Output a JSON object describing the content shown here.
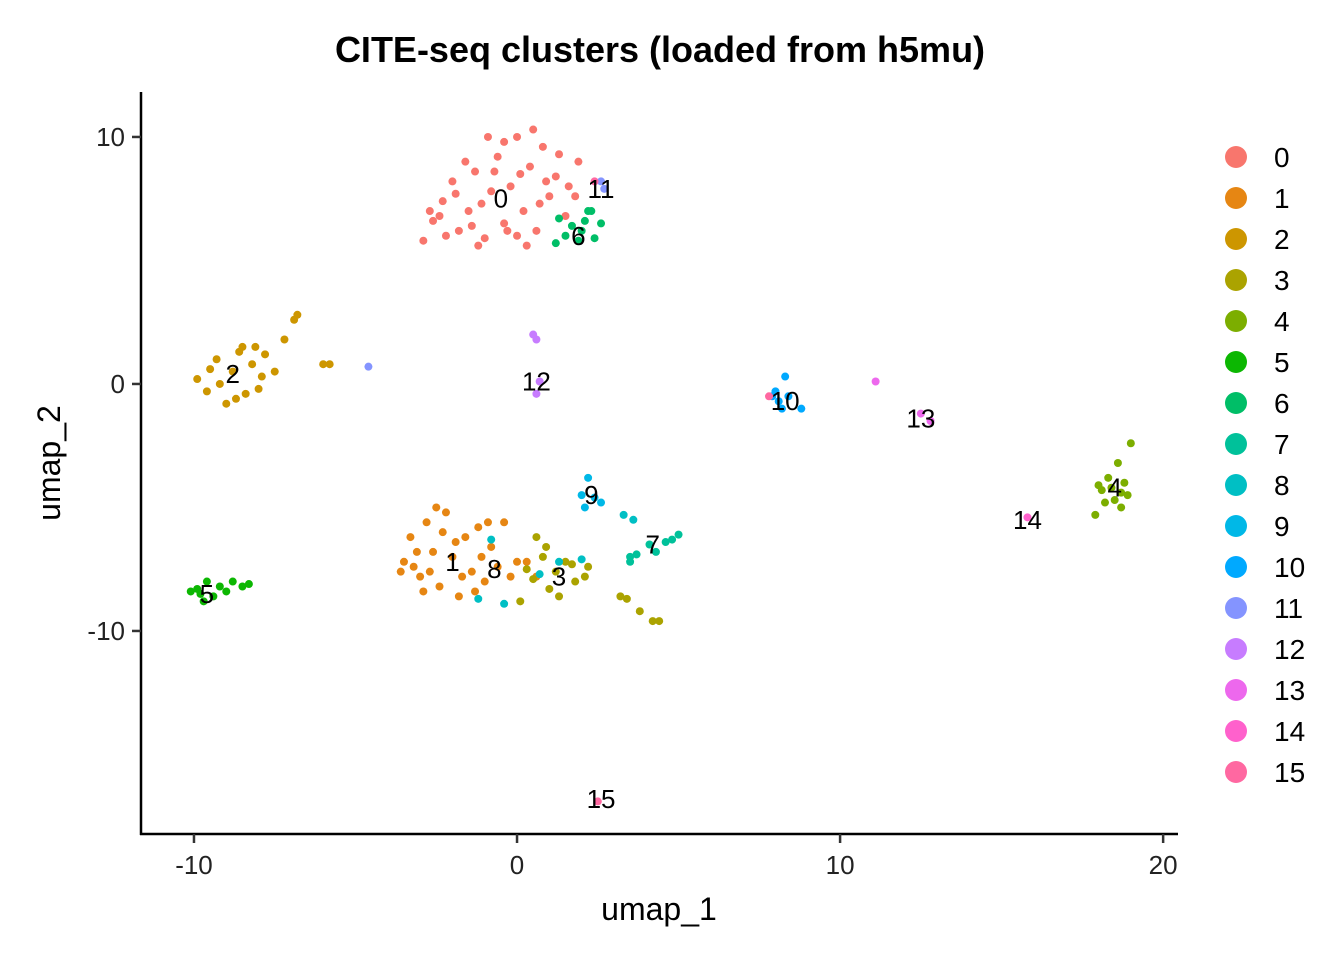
{
  "chart_data": {
    "type": "scatter",
    "title": "CITE-seq clusters (loaded from h5mu)",
    "xlabel": "umap_1",
    "ylabel": "umap_2",
    "xlim": [
      -11.64,
      20.46
    ],
    "ylim": [
      -18.22,
      11.82
    ],
    "xticks": [
      -10,
      0,
      10,
      20
    ],
    "yticks": [
      -10,
      0,
      10
    ],
    "grid": false,
    "legend_position": "right",
    "legend": [
      "0",
      "1",
      "2",
      "3",
      "4",
      "5",
      "6",
      "7",
      "8",
      "9",
      "10",
      "11",
      "12",
      "13",
      "14",
      "15"
    ],
    "colors": [
      "#F8766D",
      "#E68613",
      "#CD9600",
      "#ABA300",
      "#7CAE00",
      "#0CB702",
      "#00BE67",
      "#00C19A",
      "#00BFC4",
      "#00B8E7",
      "#00A9FF",
      "#8494FF",
      "#C77CFF",
      "#ED68ED",
      "#FF61CC",
      "#FF68A1"
    ],
    "series": [
      {
        "name": "0",
        "points": [
          [
            -2.9,
            5.8
          ],
          [
            -2.6,
            6.6
          ],
          [
            -2.3,
            7.4
          ],
          [
            -2.0,
            8.2
          ],
          [
            -1.8,
            6.2
          ],
          [
            -1.5,
            7.0
          ],
          [
            -1.3,
            8.6
          ],
          [
            -1.0,
            5.9
          ],
          [
            -0.8,
            7.8
          ],
          [
            -0.6,
            9.2
          ],
          [
            -0.4,
            6.5
          ],
          [
            -0.2,
            8.0
          ],
          [
            0,
            10.0
          ],
          [
            0.2,
            7.0
          ],
          [
            0.4,
            8.8
          ],
          [
            0.6,
            6.2
          ],
          [
            0.8,
            9.6
          ],
          [
            1.0,
            7.6
          ],
          [
            1.2,
            8.4
          ],
          [
            1.5,
            6.8
          ],
          [
            1.8,
            7.6
          ],
          [
            -2.7,
            7.0
          ],
          [
            -1.6,
            9.0
          ],
          [
            -0.9,
            10.0
          ],
          [
            0.3,
            5.6
          ],
          [
            -1.2,
            5.6
          ],
          [
            1.9,
            9.0
          ],
          [
            0.0,
            6.0
          ],
          [
            -2.2,
            6.0
          ],
          [
            0.5,
            10.3
          ],
          [
            -0.4,
            9.8
          ],
          [
            1.3,
            9.3
          ],
          [
            -1.9,
            7.7
          ],
          [
            0.9,
            8.2
          ],
          [
            -2.4,
            6.8
          ],
          [
            -1.1,
            7.3
          ],
          [
            0.1,
            8.5
          ],
          [
            0.7,
            7.3
          ],
          [
            -0.3,
            6.2
          ],
          [
            1.6,
            8.0
          ],
          [
            -1.4,
            6.4
          ],
          [
            -0.7,
            8.6
          ]
        ]
      },
      {
        "name": "1",
        "points": [
          [
            -3.5,
            -7.2
          ],
          [
            -3.3,
            -6.2
          ],
          [
            -3.0,
            -7.8
          ],
          [
            -2.8,
            -5.6
          ],
          [
            -2.6,
            -6.8
          ],
          [
            -2.4,
            -8.2
          ],
          [
            -2.2,
            -5.2
          ],
          [
            -2.0,
            -7.0
          ],
          [
            -1.8,
            -8.6
          ],
          [
            -1.6,
            -6.2
          ],
          [
            -1.4,
            -7.6
          ],
          [
            -1.2,
            -5.8
          ],
          [
            -1.0,
            -8.0
          ],
          [
            -0.8,
            -6.6
          ],
          [
            -0.6,
            -7.4
          ],
          [
            -0.4,
            -5.6
          ],
          [
            -0.2,
            -7.8
          ],
          [
            0.0,
            -7.2
          ],
          [
            0.3,
            -7.2
          ],
          [
            -3.6,
            -7.6
          ],
          [
            -2.9,
            -8.4
          ],
          [
            -1.9,
            -6.4
          ],
          [
            -1.1,
            -7.0
          ],
          [
            0.6,
            -7.8
          ],
          [
            -2.5,
            -5.0
          ],
          [
            -3.1,
            -6.8
          ],
          [
            -2.7,
            -7.6
          ],
          [
            -1.7,
            -7.8
          ],
          [
            -2.3,
            -6.0
          ],
          [
            -1.3,
            -8.4
          ],
          [
            -0.9,
            -5.6
          ],
          [
            -3.2,
            -7.4
          ]
        ]
      },
      {
        "name": "2",
        "points": [
          [
            -9.9,
            0.2
          ],
          [
            -9.6,
            -0.3
          ],
          [
            -9.3,
            1.0
          ],
          [
            -9.0,
            -0.8
          ],
          [
            -8.8,
            0.5
          ],
          [
            -8.6,
            1.3
          ],
          [
            -8.4,
            -0.4
          ],
          [
            -8.2,
            0.8
          ],
          [
            -8.0,
            -0.2
          ],
          [
            -7.8,
            1.2
          ],
          [
            -7.5,
            0.5
          ],
          [
            -7.2,
            1.8
          ],
          [
            -6.9,
            2.6
          ],
          [
            -6.8,
            2.8
          ],
          [
            -6.0,
            0.8
          ],
          [
            -5.8,
            0.8
          ],
          [
            -9.2,
            0.0
          ],
          [
            -8.5,
            1.5
          ],
          [
            -9.5,
            0.6
          ],
          [
            -7.9,
            0.3
          ],
          [
            -8.7,
            -0.6
          ],
          [
            -8.1,
            1.5
          ]
        ]
      },
      {
        "name": "3",
        "points": [
          [
            0.3,
            -7.5
          ],
          [
            0.6,
            -6.2
          ],
          [
            0.8,
            -7.0
          ],
          [
            1.0,
            -8.3
          ],
          [
            1.2,
            -7.6
          ],
          [
            1.5,
            -7.2
          ],
          [
            1.8,
            -8.0
          ],
          [
            2.1,
            -7.8
          ],
          [
            2.2,
            -7.4
          ],
          [
            0.1,
            -8.8
          ],
          [
            0.9,
            -6.6
          ],
          [
            3.2,
            -8.6
          ],
          [
            3.8,
            -9.2
          ],
          [
            4.2,
            -9.6
          ],
          [
            4.4,
            -9.6
          ],
          [
            1.3,
            -8.6
          ],
          [
            1.7,
            -7.3
          ],
          [
            0.5,
            -7.9
          ],
          [
            3.4,
            -8.7
          ]
        ]
      },
      {
        "name": "4",
        "points": [
          [
            17.9,
            -5.3
          ],
          [
            18.1,
            -4.3
          ],
          [
            18.3,
            -3.8
          ],
          [
            18.5,
            -4.7
          ],
          [
            18.6,
            -3.2
          ],
          [
            18.7,
            -5.0
          ],
          [
            18.8,
            -4.0
          ],
          [
            18.9,
            -4.5
          ],
          [
            19.0,
            -2.4
          ],
          [
            18.4,
            -4.2
          ],
          [
            18.2,
            -4.8
          ],
          [
            18.0,
            -4.1
          ],
          [
            18.7,
            -4.4
          ]
        ]
      },
      {
        "name": "5",
        "points": [
          [
            -10.1,
            -8.4
          ],
          [
            -9.8,
            -8.5
          ],
          [
            -9.6,
            -8.0
          ],
          [
            -9.4,
            -8.6
          ],
          [
            -9.2,
            -8.2
          ],
          [
            -9.0,
            -8.4
          ],
          [
            -8.8,
            -8.0
          ],
          [
            -8.5,
            -8.2
          ],
          [
            -8.3,
            -8.1
          ],
          [
            -9.9,
            -8.3
          ],
          [
            -9.7,
            -8.8
          ]
        ]
      },
      {
        "name": "6",
        "points": [
          [
            1.3,
            6.7
          ],
          [
            1.5,
            6.0
          ],
          [
            1.7,
            6.4
          ],
          [
            1.9,
            5.8
          ],
          [
            2.1,
            6.6
          ],
          [
            2.3,
            7.0
          ],
          [
            2.4,
            5.9
          ],
          [
            2.6,
            6.5
          ],
          [
            1.2,
            5.7
          ],
          [
            2.0,
            6.2
          ],
          [
            2.2,
            7.0
          ]
        ]
      },
      {
        "name": "7",
        "points": [
          [
            3.5,
            -7.2
          ],
          [
            3.7,
            -6.9
          ],
          [
            4.1,
            -6.5
          ],
          [
            4.3,
            -6.8
          ],
          [
            4.6,
            -6.4
          ],
          [
            4.8,
            -6.3
          ],
          [
            5.0,
            -6.1
          ],
          [
            3.5,
            -7.0
          ]
        ]
      },
      {
        "name": "8",
        "points": [
          [
            1.3,
            -7.2
          ],
          [
            0.7,
            -7.7
          ],
          [
            -0.4,
            -8.9
          ],
          [
            -1.2,
            -8.7
          ],
          [
            3.6,
            -5.5
          ],
          [
            3.3,
            -5.3
          ],
          [
            2.0,
            -7.1
          ],
          [
            -0.8,
            -6.3
          ]
        ]
      },
      {
        "name": "9",
        "points": [
          [
            2.2,
            -3.8
          ],
          [
            2.0,
            -4.5
          ],
          [
            2.4,
            -4.6
          ],
          [
            2.1,
            -5.0
          ],
          [
            2.6,
            -4.8
          ]
        ]
      },
      {
        "name": "10",
        "points": [
          [
            7.9,
            -0.5
          ],
          [
            8.1,
            -0.7
          ],
          [
            8.3,
            0.3
          ],
          [
            8.4,
            -0.5
          ],
          [
            8.8,
            -1.0
          ],
          [
            8.0,
            -0.3
          ],
          [
            8.2,
            -1.0
          ]
        ]
      },
      {
        "name": "11",
        "points": [
          [
            2.6,
            8.2
          ],
          [
            2.7,
            7.9
          ],
          [
            -4.6,
            0.7
          ]
        ]
      },
      {
        "name": "12",
        "points": [
          [
            0.5,
            2.0
          ],
          [
            0.6,
            1.8
          ],
          [
            0.7,
            0.1
          ],
          [
            0.6,
            -0.4
          ]
        ]
      },
      {
        "name": "13",
        "points": [
          [
            11.1,
            0.1
          ],
          [
            12.5,
            -1.2
          ],
          [
            12.8,
            -1.5
          ]
        ]
      },
      {
        "name": "14",
        "points": [
          [
            15.8,
            -5.4
          ]
        ]
      },
      {
        "name": "15",
        "points": [
          [
            2.5,
            -16.9
          ],
          [
            7.8,
            -0.5
          ],
          [
            2.4,
            8.2
          ]
        ]
      }
    ],
    "cluster_labels": [
      {
        "text": "0",
        "x": -0.5,
        "y": 7.5
      },
      {
        "text": "1",
        "x": -2.0,
        "y": -7.2
      },
      {
        "text": "2",
        "x": -8.8,
        "y": 0.4
      },
      {
        "text": "3",
        "x": 1.3,
        "y": -7.8
      },
      {
        "text": "4",
        "x": 18.5,
        "y": -4.2
      },
      {
        "text": "5",
        "x": -9.6,
        "y": -8.5
      },
      {
        "text": "6",
        "x": 1.9,
        "y": 6.0
      },
      {
        "text": "7",
        "x": 4.2,
        "y": -6.5
      },
      {
        "text": "8",
        "x": -0.7,
        "y": -7.5
      },
      {
        "text": "9",
        "x": 2.3,
        "y": -4.5
      },
      {
        "text": "10",
        "x": 8.3,
        "y": -0.7
      },
      {
        "text": "11",
        "x": 2.6,
        "y": 7.9
      },
      {
        "text": "12",
        "x": 0.6,
        "y": 0.1
      },
      {
        "text": "13",
        "x": 12.5,
        "y": -1.4
      },
      {
        "text": "14",
        "x": 15.8,
        "y": -5.5
      },
      {
        "text": "15",
        "x": 2.6,
        "y": -16.8
      }
    ]
  }
}
